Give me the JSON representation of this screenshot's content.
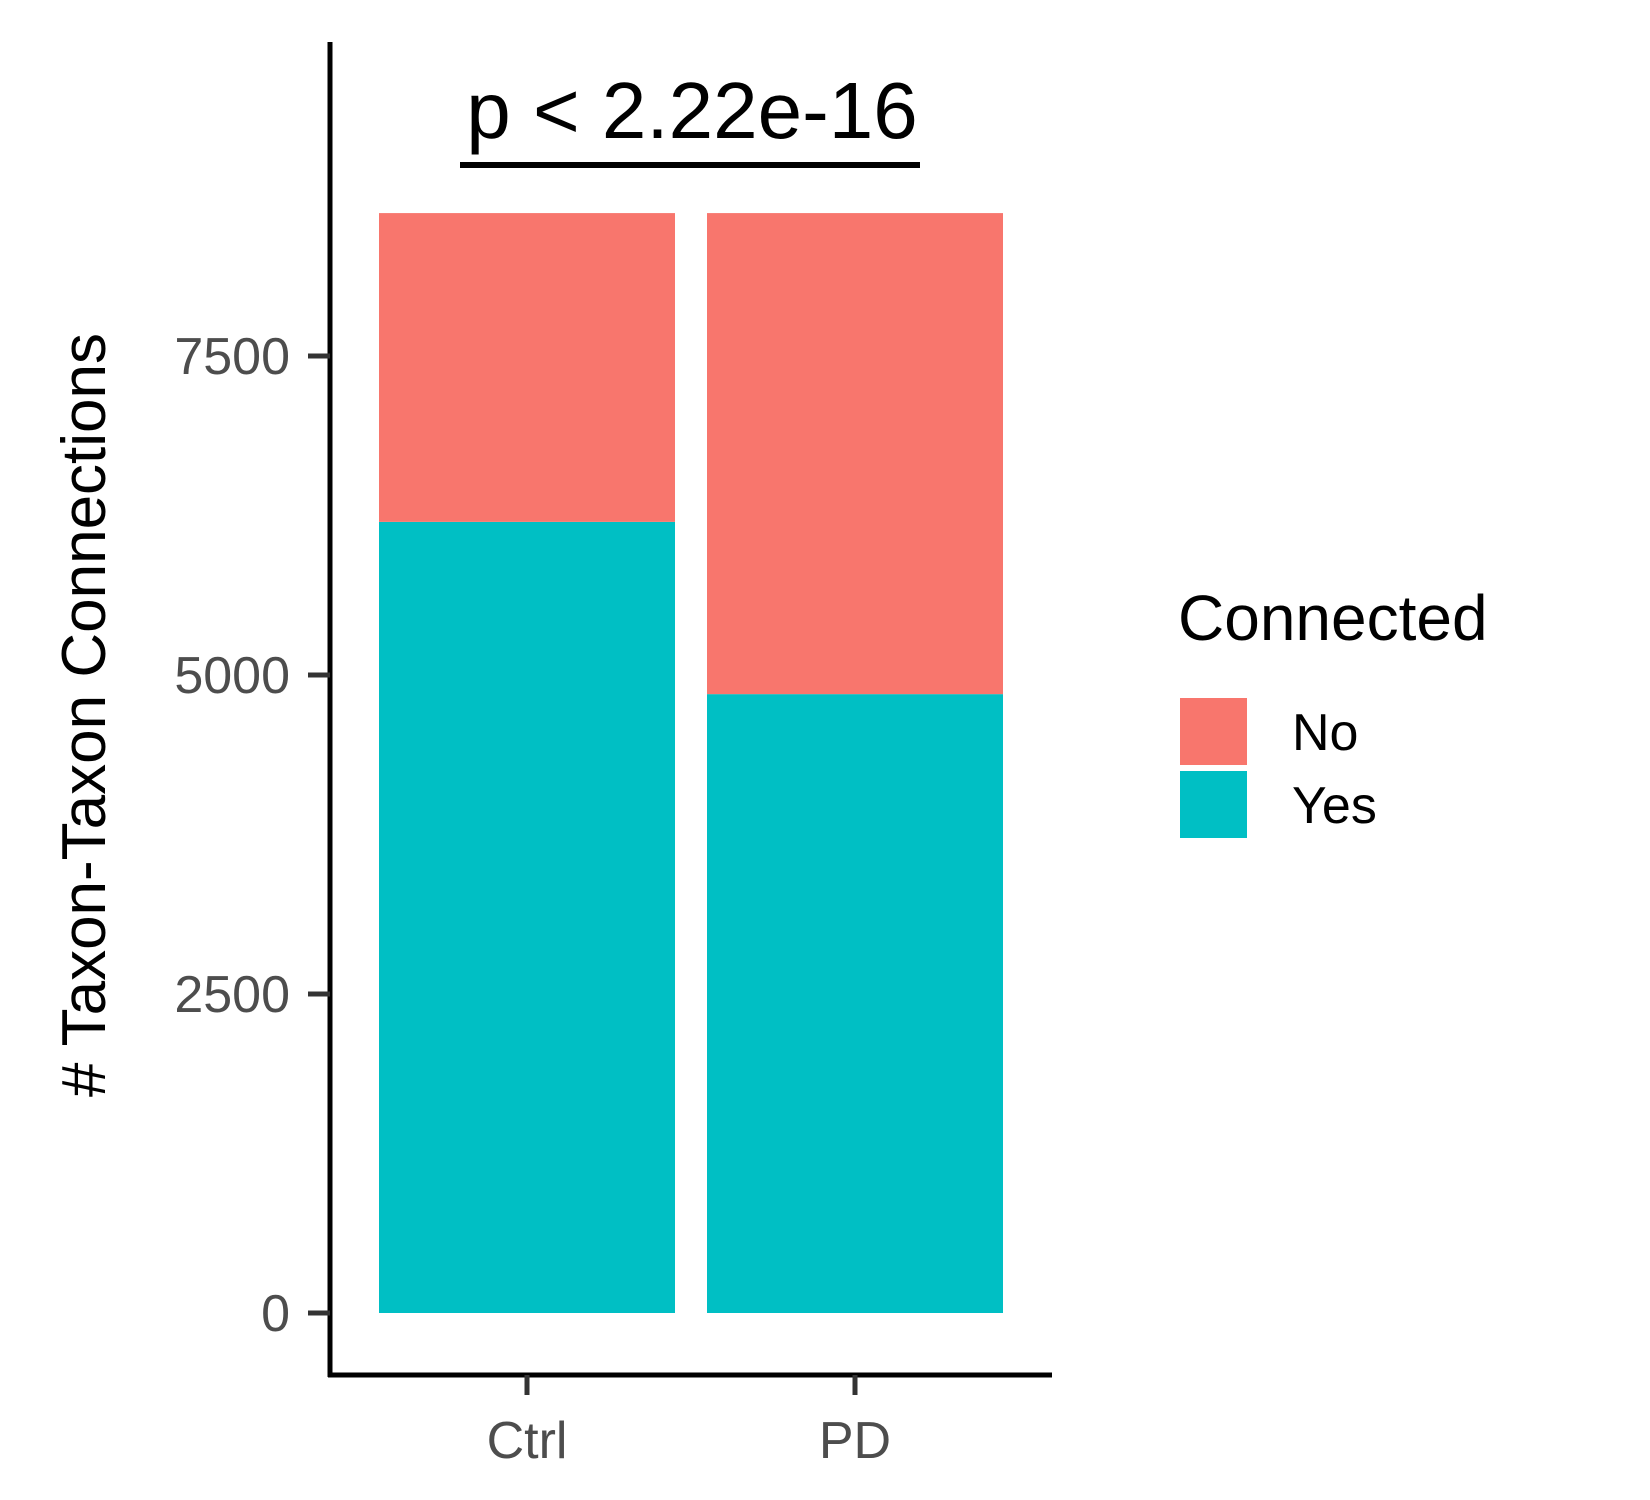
{
  "chart_data": {
    "type": "bar",
    "stacked": true,
    "categories": [
      "Ctrl",
      "PD"
    ],
    "series": [
      {
        "name": "Yes",
        "color": "#00BFC4",
        "values": [
          6200,
          4850
        ]
      },
      {
        "name": "No",
        "color": "#F8766D",
        "values": [
          2420,
          3770
        ]
      }
    ],
    "totals": [
      8620,
      8620
    ],
    "ylabel": "# Taxon-Taxon Connections",
    "xlabel": "",
    "ylim": [
      -450,
      9950
    ],
    "yticks": [
      0,
      2500,
      5000,
      7500
    ],
    "ytick_labels": [
      "0",
      "2500",
      "5000",
      "7500"
    ],
    "annotation": {
      "text": "p < 2.22e-16",
      "bracket_from": "Ctrl",
      "bracket_to": "PD"
    },
    "legend": {
      "title": "Connected",
      "position": "right",
      "entries": [
        {
          "label": "No",
          "color": "#F8766D"
        },
        {
          "label": "Yes",
          "color": "#00BFC4"
        }
      ]
    },
    "grid": false
  }
}
